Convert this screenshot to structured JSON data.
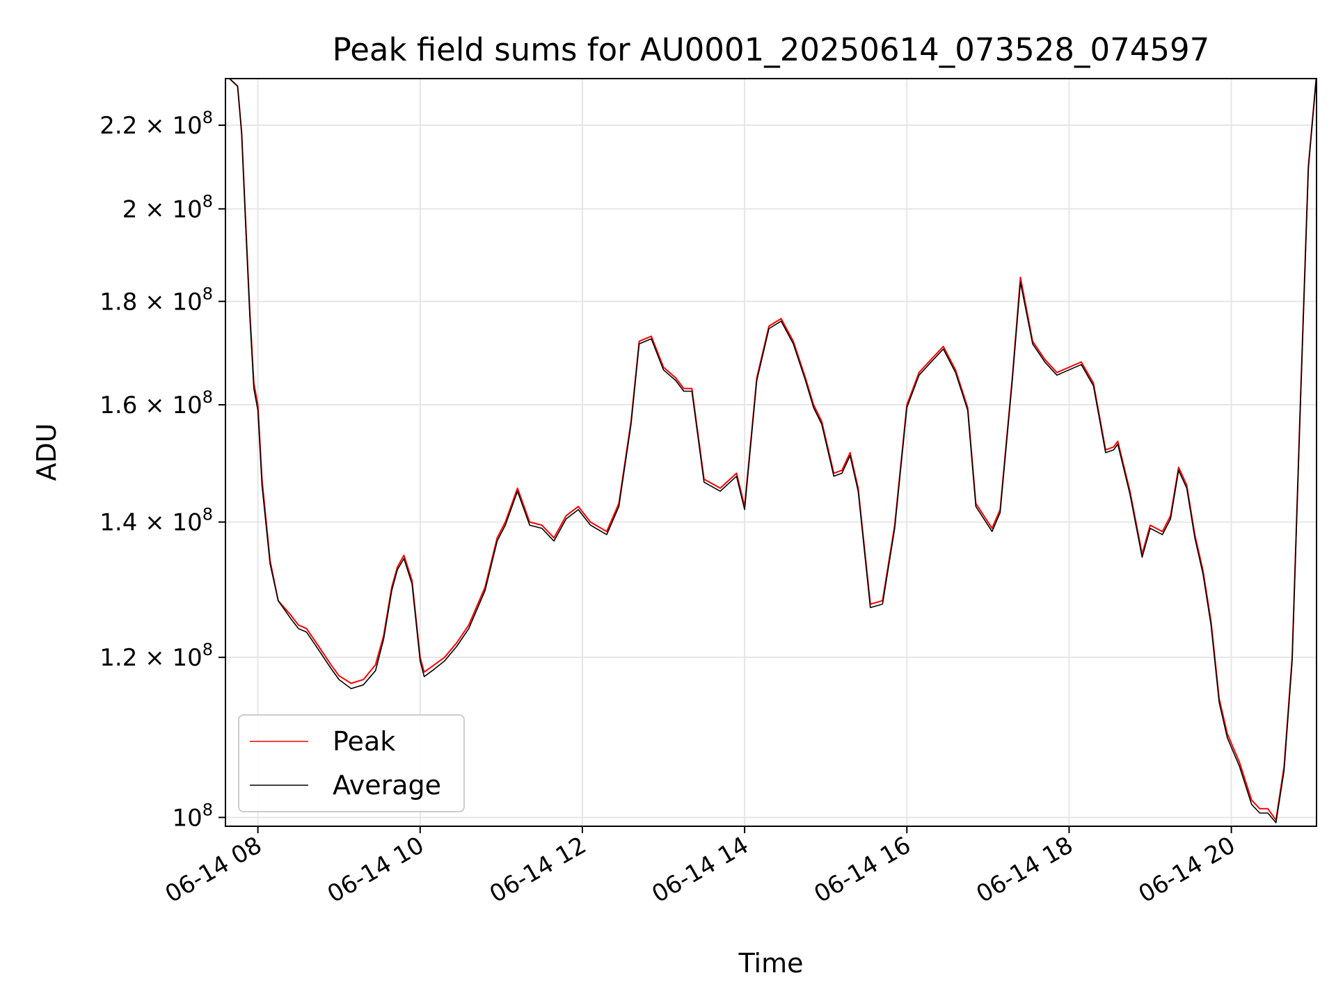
{
  "chart_data": {
    "type": "line",
    "title": "Peak field sums for AU0001_20250614_073528_074597",
    "xlabel": "Time",
    "ylabel": "ADU",
    "x_unit": "hour of 2025-06-14",
    "xlim": [
      7.6,
      21.05
    ],
    "ylim": [
      99000000,
      232000000
    ],
    "yscale": "log",
    "grid": true,
    "legend_position": "lower-left",
    "x_ticks": [
      {
        "value": 8,
        "label": "06-14 08"
      },
      {
        "value": 10,
        "label": "06-14 10"
      },
      {
        "value": 12,
        "label": "06-14 12"
      },
      {
        "value": 14,
        "label": "06-14 14"
      },
      {
        "value": 16,
        "label": "06-14 16"
      },
      {
        "value": 18,
        "label": "06-14 18"
      },
      {
        "value": 20,
        "label": "06-14 20"
      }
    ],
    "y_ticks": [
      {
        "value": 100000000,
        "mant": "",
        "base": "10",
        "exp": "8"
      },
      {
        "value": 120000000,
        "mant": "1.2 × ",
        "base": "10",
        "exp": "8"
      },
      {
        "value": 140000000,
        "mant": "1.4 × ",
        "base": "10",
        "exp": "8"
      },
      {
        "value": 160000000,
        "mant": "1.6 × ",
        "base": "10",
        "exp": "8"
      },
      {
        "value": 180000000,
        "mant": "1.8 × ",
        "base": "10",
        "exp": "8"
      },
      {
        "value": 200000000,
        "mant": "2 × ",
        "base": "10",
        "exp": "8"
      },
      {
        "value": 220000000,
        "mant": "2.2 × ",
        "base": "10",
        "exp": "8"
      }
    ],
    "x": [
      7.6,
      7.75,
      7.8,
      7.85,
      7.9,
      7.95,
      8.0,
      8.05,
      8.15,
      8.25,
      8.4,
      8.5,
      8.6,
      8.75,
      8.9,
      9.0,
      9.15,
      9.3,
      9.45,
      9.55,
      9.65,
      9.72,
      9.8,
      9.9,
      10.0,
      10.05,
      10.15,
      10.3,
      10.45,
      10.6,
      10.8,
      10.95,
      11.05,
      11.2,
      11.35,
      11.5,
      11.65,
      11.8,
      11.95,
      12.1,
      12.3,
      12.45,
      12.6,
      12.7,
      12.85,
      13.0,
      13.15,
      13.25,
      13.35,
      13.5,
      13.7,
      13.9,
      14.0,
      14.15,
      14.3,
      14.45,
      14.6,
      14.75,
      14.85,
      14.95,
      15.1,
      15.2,
      15.3,
      15.4,
      15.55,
      15.7,
      15.85,
      16.0,
      16.15,
      16.3,
      16.45,
      16.6,
      16.75,
      16.85,
      16.95,
      17.05,
      17.15,
      17.3,
      17.4,
      17.55,
      17.7,
      17.85,
      18.0,
      18.15,
      18.3,
      18.45,
      18.55,
      18.6,
      18.75,
      18.9,
      19.0,
      19.15,
      19.25,
      19.35,
      19.45,
      19.55,
      19.65,
      19.75,
      19.85,
      19.95,
      20.1,
      20.25,
      20.35,
      20.45,
      20.55,
      20.65,
      20.75,
      20.85,
      20.95,
      21.05
    ],
    "series": [
      {
        "name": "Peak",
        "color": "#ff0000",
        "values": [
          233000000,
          230000000,
          218000000,
          197000000,
          178000000,
          164000000,
          160000000,
          147000000,
          134000000,
          128000000,
          126000000,
          124500000,
          124000000,
          121500000,
          119000000,
          117500000,
          116500000,
          117000000,
          119000000,
          123000000,
          130000000,
          133000000,
          134800000,
          131000000,
          120000000,
          118000000,
          118800000,
          120000000,
          122000000,
          124500000,
          130000000,
          137500000,
          140000000,
          145500000,
          140000000,
          139500000,
          137500000,
          141000000,
          142500000,
          140000000,
          138500000,
          143000000,
          157000000,
          172000000,
          173000000,
          167000000,
          165000000,
          163000000,
          163000000,
          147000000,
          145500000,
          148000000,
          142500000,
          165000000,
          175000000,
          176500000,
          172000000,
          165000000,
          160000000,
          157000000,
          148000000,
          148500000,
          151500000,
          145500000,
          127500000,
          128000000,
          139500000,
          160000000,
          166000000,
          168500000,
          171000000,
          166500000,
          159500000,
          143000000,
          141000000,
          139000000,
          142000000,
          165000000,
          185000000,
          172000000,
          168500000,
          166000000,
          167000000,
          168000000,
          164000000,
          152000000,
          152500000,
          153500000,
          145000000,
          135000000,
          139500000,
          138500000,
          141000000,
          149000000,
          146000000,
          138000000,
          132500000,
          125000000,
          114500000,
          110000000,
          106500000,
          102000000,
          101000000,
          101000000,
          99700000,
          106000000,
          120000000,
          160000000,
          210000000,
          233000000
        ]
      },
      {
        "name": "Average",
        "color": "#000000",
        "values": [
          233000000,
          230000000,
          218000000,
          196000000,
          177000000,
          163000000,
          159000000,
          146000000,
          133500000,
          128000000,
          125500000,
          124000000,
          123500000,
          121000000,
          118500000,
          117000000,
          115800000,
          116300000,
          118200000,
          122500000,
          129500000,
          132600000,
          134300000,
          130500000,
          119500000,
          117400000,
          118200000,
          119500000,
          121500000,
          124000000,
          129500000,
          137000000,
          139500000,
          145000000,
          139500000,
          139000000,
          137000000,
          140500000,
          142000000,
          139500000,
          138000000,
          142500000,
          156500000,
          171500000,
          172500000,
          166500000,
          164500000,
          162500000,
          162500000,
          146500000,
          145000000,
          147500000,
          142000000,
          164500000,
          174500000,
          176000000,
          171500000,
          164500000,
          159500000,
          156500000,
          147500000,
          148000000,
          151000000,
          145000000,
          127000000,
          127500000,
          139000000,
          159500000,
          165500000,
          168000000,
          170500000,
          166000000,
          159000000,
          142500000,
          140500000,
          138500000,
          141500000,
          164500000,
          184000000,
          171500000,
          168000000,
          165500000,
          166500000,
          167500000,
          163500000,
          151500000,
          152000000,
          153000000,
          144500000,
          134500000,
          139000000,
          138000000,
          140500000,
          148500000,
          145500000,
          137500000,
          132000000,
          124500000,
          114000000,
          109500000,
          106000000,
          101500000,
          100500000,
          100500000,
          99400000,
          105500000,
          119500000,
          159500000,
          209500000,
          233000000
        ]
      }
    ]
  }
}
